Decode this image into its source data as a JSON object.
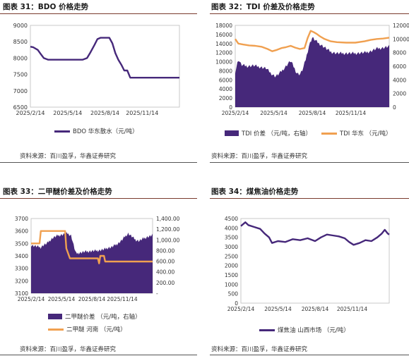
{
  "colors": {
    "purple": "#46287a",
    "orange": "#f0a050",
    "rule": "#7a3b2e"
  },
  "panels": [
    {
      "title": "图表 31：BDO 价格走势",
      "source": "资料来源：百川盈孚，华鑫证券研究"
    },
    {
      "title": "图表 32：TDI 价差及价格走势",
      "source": "资料来源：百川盈孚，华鑫证券研究"
    },
    {
      "title": "图表 33：二甲醚价差及价格走势",
      "source": "资料来源：百川盈孚，华鑫证券研究"
    },
    {
      "title": "图表 34：煤焦油价格走势",
      "source": "资料来源：百川盈孚，华鑫证券研究"
    }
  ],
  "chart_data": [
    {
      "type": "line",
      "x_ticks": [
        "2025/2/14",
        "2025/5/14",
        "2025/8/14",
        "2025/11/14"
      ],
      "y_ticks": [
        "9000",
        "8500",
        "8000",
        "7500",
        "7000",
        "6500"
      ],
      "ylim": [
        6500,
        9000
      ],
      "series": [
        {
          "name": "BDO  华东散水（元/吨）",
          "color": "#46287a",
          "role": "line",
          "points": [
            [
              0,
              8350
            ],
            [
              0.02,
              8330
            ],
            [
              0.05,
              8250
            ],
            [
              0.07,
              8120
            ],
            [
              0.09,
              8000
            ],
            [
              0.12,
              7950
            ],
            [
              0.35,
              7950
            ],
            [
              0.38,
              8000
            ],
            [
              0.4,
              8150
            ],
            [
              0.43,
              8400
            ],
            [
              0.45,
              8580
            ],
            [
              0.47,
              8620
            ],
            [
              0.53,
              8620
            ],
            [
              0.55,
              8450
            ],
            [
              0.57,
              8150
            ],
            [
              0.59,
              7950
            ],
            [
              0.61,
              7800
            ],
            [
              0.63,
              7620
            ],
            [
              0.65,
              7620
            ],
            [
              0.67,
              7400
            ],
            [
              1,
              7400
            ]
          ]
        }
      ]
    },
    {
      "type": "bar+line",
      "x_ticks": [
        "2025/2/14",
        "2025/5/14",
        "2025/8/14",
        "2025/11/14"
      ],
      "y_ticks_left": [
        "18000",
        "16000",
        "14000",
        "12000",
        "10000",
        "8000",
        "6000",
        "4000",
        "2000",
        "0"
      ],
      "y_ticks_right": [
        "12000",
        "10000",
        "8000",
        "6000",
        "4000",
        "2000",
        "0"
      ],
      "ylim_left": [
        0,
        18000
      ],
      "ylim_right": [
        0,
        12000
      ],
      "series": [
        {
          "name": "TDI 价差  （元/吨，右轴）",
          "color": "#46287a",
          "role": "area",
          "axis": "right",
          "points": [
            [
              0,
              5200
            ],
            [
              0.02,
              7000
            ],
            [
              0.04,
              6200
            ],
            [
              0.08,
              6000
            ],
            [
              0.12,
              6100
            ],
            [
              0.16,
              5900
            ],
            [
              0.2,
              5700
            ],
            [
              0.23,
              5000
            ],
            [
              0.26,
              4500
            ],
            [
              0.28,
              4800
            ],
            [
              0.31,
              5500
            ],
            [
              0.34,
              6300
            ],
            [
              0.36,
              6800
            ],
            [
              0.38,
              5900
            ],
            [
              0.4,
              5000
            ],
            [
              0.42,
              4800
            ],
            [
              0.44,
              5600
            ],
            [
              0.46,
              7200
            ],
            [
              0.48,
              9100
            ],
            [
              0.5,
              10200
            ],
            [
              0.52,
              9800
            ],
            [
              0.54,
              9400
            ],
            [
              0.56,
              9100
            ],
            [
              0.59,
              8600
            ],
            [
              0.62,
              8100
            ],
            [
              0.66,
              7900
            ],
            [
              0.72,
              7900
            ],
            [
              0.78,
              7900
            ],
            [
              0.84,
              8000
            ],
            [
              0.88,
              8200
            ],
            [
              0.92,
              8600
            ],
            [
              0.96,
              8700
            ],
            [
              1,
              8900
            ]
          ]
        },
        {
          "name": "TDI  华东  （元/吨）",
          "color": "#f0a050",
          "role": "line",
          "axis": "left",
          "points": [
            [
              0,
              15000
            ],
            [
              0.02,
              14000
            ],
            [
              0.05,
              13800
            ],
            [
              0.09,
              13600
            ],
            [
              0.13,
              13500
            ],
            [
              0.17,
              13300
            ],
            [
              0.21,
              12800
            ],
            [
              0.24,
              12300
            ],
            [
              0.27,
              12600
            ],
            [
              0.3,
              13000
            ],
            [
              0.33,
              13200
            ],
            [
              0.36,
              13500
            ],
            [
              0.39,
              13100
            ],
            [
              0.42,
              12800
            ],
            [
              0.45,
              13000
            ],
            [
              0.47,
              15200
            ],
            [
              0.49,
              16800
            ],
            [
              0.51,
              16500
            ],
            [
              0.53,
              16100
            ],
            [
              0.55,
              15600
            ],
            [
              0.58,
              15000
            ],
            [
              0.62,
              14500
            ],
            [
              0.66,
              14300
            ],
            [
              0.72,
              14200
            ],
            [
              0.78,
              14200
            ],
            [
              0.84,
              14500
            ],
            [
              0.88,
              14800
            ],
            [
              0.92,
              15000
            ],
            [
              0.96,
              15100
            ],
            [
              1,
              15300
            ]
          ]
        }
      ]
    },
    {
      "type": "bar+line",
      "x_ticks": [
        "2025/2/14",
        "2025/5/14",
        "2025/8/14",
        "2025/11/14"
      ],
      "y_ticks_left": [
        "3700",
        "3600",
        "3500",
        "3400",
        "3300",
        "3200",
        "3100"
      ],
      "y_ticks_right": [
        "1,400.00",
        "1,200.00",
        "1,000.00",
        "800.00",
        "600.00",
        "400.00",
        "200.00",
        "-"
      ],
      "ylim_left": [
        3100,
        3700
      ],
      "ylim_right": [
        0,
        1400
      ],
      "series": [
        {
          "name": "二甲醚价差  （元/吨，右轴）",
          "color": "#46287a",
          "role": "area",
          "axis": "right",
          "points": [
            [
              0,
              900
            ],
            [
              0.04,
              880
            ],
            [
              0.08,
              860
            ],
            [
              0.1,
              900
            ],
            [
              0.13,
              930
            ],
            [
              0.15,
              980
            ],
            [
              0.18,
              1040
            ],
            [
              0.22,
              1080
            ],
            [
              0.26,
              1100
            ],
            [
              0.3,
              1120
            ],
            [
              0.33,
              1080
            ],
            [
              0.35,
              900
            ],
            [
              0.37,
              740
            ],
            [
              0.4,
              760
            ],
            [
              0.45,
              780
            ],
            [
              0.5,
              790
            ],
            [
              0.55,
              800
            ],
            [
              0.6,
              820
            ],
            [
              0.63,
              850
            ],
            [
              0.66,
              860
            ],
            [
              0.69,
              900
            ],
            [
              0.72,
              940
            ],
            [
              0.75,
              1000
            ],
            [
              0.78,
              1080
            ],
            [
              0.8,
              1120
            ],
            [
              0.83,
              1060
            ],
            [
              0.86,
              1000
            ],
            [
              0.89,
              980
            ],
            [
              0.92,
              1020
            ],
            [
              0.95,
              1050
            ],
            [
              0.98,
              1070
            ],
            [
              1,
              1090
            ]
          ]
        },
        {
          "name": "二甲醚  河南  （元/吨）",
          "color": "#f0a050",
          "role": "line",
          "axis": "left",
          "points": [
            [
              0,
              3500
            ],
            [
              0.07,
              3500
            ],
            [
              0.08,
              3600
            ],
            [
              0.28,
              3600
            ],
            [
              0.29,
              3460
            ],
            [
              0.32,
              3380
            ],
            [
              0.55,
              3380
            ],
            [
              0.56,
              3340
            ],
            [
              0.57,
              3400
            ],
            [
              0.6,
              3400
            ],
            [
              0.61,
              3355
            ],
            [
              1,
              3355
            ]
          ]
        }
      ]
    },
    {
      "type": "line",
      "x_ticks": [
        "2025/2/14",
        "2025/5/14",
        "2025/8/14",
        "2025/11/14"
      ],
      "y_ticks": [
        "4500",
        "4000",
        "3500",
        "3000",
        "2500",
        "2000",
        "1500",
        "1000",
        "500",
        "0"
      ],
      "ylim": [
        0,
        4500
      ],
      "series": [
        {
          "name": "煤焦油  山西市场  （元/吨）",
          "color": "#46287a",
          "role": "line",
          "points": [
            [
              0,
              4100
            ],
            [
              0.03,
              4300
            ],
            [
              0.05,
              4150
            ],
            [
              0.09,
              4050
            ],
            [
              0.13,
              3950
            ],
            [
              0.16,
              3700
            ],
            [
              0.19,
              3500
            ],
            [
              0.21,
              3200
            ],
            [
              0.25,
              3300
            ],
            [
              0.3,
              3250
            ],
            [
              0.35,
              3400
            ],
            [
              0.4,
              3350
            ],
            [
              0.45,
              3450
            ],
            [
              0.5,
              3300
            ],
            [
              0.54,
              3500
            ],
            [
              0.58,
              3650
            ],
            [
              0.62,
              3600
            ],
            [
              0.66,
              3550
            ],
            [
              0.7,
              3450
            ],
            [
              0.73,
              3250
            ],
            [
              0.76,
              3100
            ],
            [
              0.8,
              3200
            ],
            [
              0.84,
              3350
            ],
            [
              0.88,
              3300
            ],
            [
              0.92,
              3500
            ],
            [
              0.95,
              3700
            ],
            [
              0.97,
              3900
            ],
            [
              0.99,
              3700
            ],
            [
              1,
              3650
            ]
          ]
        }
      ]
    }
  ]
}
